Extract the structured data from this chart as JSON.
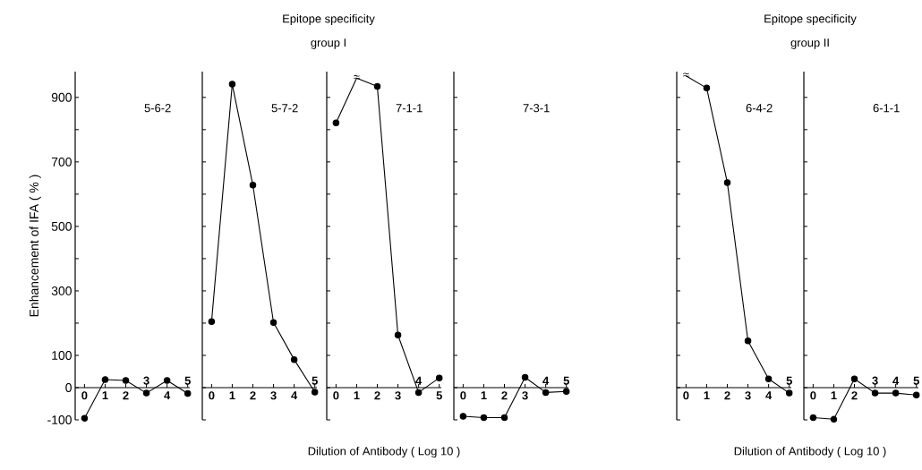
{
  "chart_data": [
    {
      "type": "line",
      "title": "5-6-2",
      "ylabel": "Enhancement of IFA ( % )",
      "categories": [
        "0",
        "1",
        "2",
        "3",
        "4",
        "5"
      ],
      "values": [
        -95,
        25,
        22,
        -17,
        22,
        -18
      ],
      "color": "#000000",
      "marker": "circle",
      "line_style": "solid",
      "ylim": [
        -100,
        980
      ],
      "yticks": [
        -100,
        0,
        100,
        {
          "value": 200,
          "label": null
        },
        300,
        {
          "value": 400,
          "label": null
        },
        500,
        {
          "value": 600,
          "label": null
        },
        700,
        {
          "value": 800,
          "label": null
        },
        900
      ]
    },
    {
      "type": "line",
      "title": "5-7-2",
      "annotations": [
        "Epitope specificity",
        "group I"
      ],
      "categories": [
        "0",
        "1",
        "2",
        "3",
        "4",
        "5"
      ],
      "values": [
        205,
        941,
        628,
        202,
        87,
        -14
      ],
      "color": "#000000",
      "marker": "circle",
      "line_style": "solid",
      "tick_labels": "x",
      "ylim": [
        -100,
        980
      ],
      "yticks": [
        -100,
        0,
        100,
        200,
        300,
        400,
        500,
        600,
        700,
        800,
        900
      ]
    },
    {
      "type": "line",
      "title": "7-1-1",
      "xlabel": "Dilution of Antibody ( Log 10 )",
      "annotations": [
        {
          "text": "≈",
          "x": "1",
          "y": 960
        }
      ],
      "categories": [
        "0",
        "1",
        "2",
        "3",
        "4",
        "5"
      ],
      "values": [
        821,
        960,
        934,
        163,
        -15,
        30
      ],
      "color": "#000000",
      "marker": "circle",
      "line_style": "solid",
      "tick_labels": "x",
      "ylim": [
        -100,
        980
      ],
      "yticks": [
        -100,
        0,
        100,
        200,
        300,
        400,
        500,
        600,
        700,
        800,
        900
      ]
    },
    {
      "type": "line",
      "title": "7-3-1",
      "categories": [
        "0",
        "1",
        "2",
        "3",
        "4",
        "5"
      ],
      "values": [
        -89,
        -93,
        -93,
        32,
        -15,
        -12
      ],
      "color": "#000000",
      "marker": "circle",
      "line_style": "solid",
      "tick_labels": "x",
      "ylim": [
        -100,
        980
      ],
      "yticks": [
        -100,
        0,
        100,
        200,
        300,
        400,
        500,
        600,
        700,
        800,
        900
      ]
    },
    {
      "type": "line",
      "title": "6-4-2",
      "annotations": [
        "Epitope specificity",
        "group II",
        {
          "text": "≈",
          "x": "0",
          "y": 967
        }
      ],
      "categories": [
        "0",
        "1",
        "2",
        "3",
        "4",
        "5"
      ],
      "values": [
        967,
        929,
        636,
        145,
        27,
        -17
      ],
      "color": "#000000",
      "marker": "circle",
      "line_style": "solid",
      "tick_labels": "x",
      "ylim": [
        -100,
        980
      ],
      "yticks": [
        -100,
        0,
        100,
        200,
        300,
        400,
        500,
        600,
        700,
        800,
        900
      ]
    },
    {
      "type": "line",
      "title": "6-1-1",
      "xlabel": "Dilution of Antibody ( Log 10 )",
      "categories": [
        "0",
        "1",
        "2",
        "3",
        "4",
        "5"
      ],
      "values": [
        -93,
        -98,
        27,
        -17,
        -17,
        -23
      ],
      "color": "#000000",
      "marker": "circle",
      "line_style": "solid",
      "tick_labels": "x",
      "ylim": [
        -100,
        980
      ],
      "yticks": [
        -100,
        0,
        100,
        200,
        300,
        400,
        500,
        600,
        700,
        800,
        900
      ]
    }
  ]
}
